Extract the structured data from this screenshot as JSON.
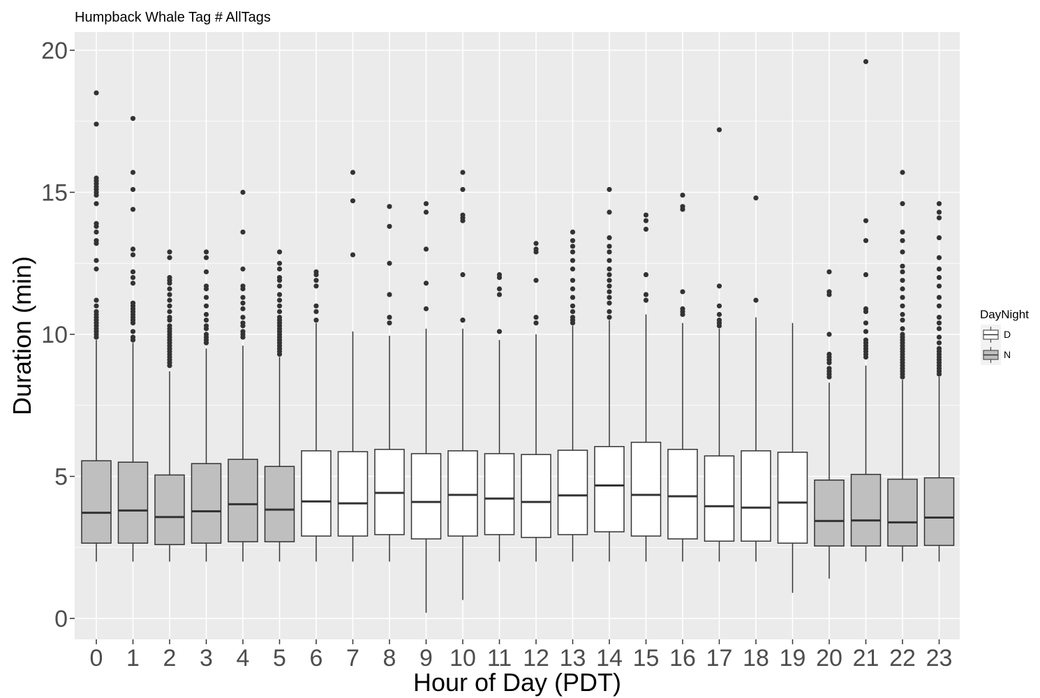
{
  "chart_data": {
    "type": "boxplot",
    "title": "Humpback Whale Tag # AllTags",
    "xlabel": "Hour of Day (PDT)",
    "ylabel": "Duration (min)",
    "ylim": [
      -0.7,
      20.7
    ],
    "yticks": [
      0,
      5,
      10,
      15,
      20
    ],
    "grid": true,
    "legend": {
      "title": "DayNight",
      "position": "right",
      "entries": [
        {
          "label": "D",
          "fill": "#ffffff"
        },
        {
          "label": "N",
          "fill": "#bfbfbf"
        }
      ]
    },
    "colors": {
      "panel": "#ebebeb",
      "grid": "#ffffff",
      "box_line": "#333333",
      "outlier": "#333333",
      "D": "#ffffff",
      "N": "#bfbfbf"
    },
    "categories": [
      "0",
      "1",
      "2",
      "3",
      "4",
      "5",
      "6",
      "7",
      "8",
      "9",
      "10",
      "11",
      "12",
      "13",
      "14",
      "15",
      "16",
      "17",
      "18",
      "19",
      "20",
      "21",
      "22",
      "23"
    ],
    "boxes": [
      {
        "x": "0",
        "group": "N",
        "whisker_low": 2.0,
        "q1": 2.65,
        "median": 3.72,
        "q3": 5.55,
        "whisker_high": 9.8,
        "outliers": [
          9.9,
          10.0,
          10.1,
          10.2,
          10.3,
          10.4,
          10.5,
          10.6,
          10.7,
          10.8,
          11.0,
          11.2,
          12.3,
          12.6,
          13.2,
          13.3,
          13.6,
          13.8,
          13.9,
          14.6,
          14.9,
          15.0,
          15.1,
          15.2,
          15.3,
          15.4,
          15.5,
          17.4,
          18.5
        ]
      },
      {
        "x": "1",
        "group": "N",
        "whisker_low": 2.0,
        "q1": 2.65,
        "median": 3.8,
        "q3": 5.5,
        "whisker_high": 9.7,
        "outliers": [
          9.8,
          9.9,
          10.1,
          10.4,
          10.5,
          10.6,
          10.7,
          10.8,
          10.9,
          11.0,
          11.1,
          11.8,
          12.0,
          12.2,
          12.8,
          13.0,
          14.4,
          15.1,
          15.7,
          17.6
        ]
      },
      {
        "x": "2",
        "group": "N",
        "whisker_low": 2.0,
        "q1": 2.6,
        "median": 3.57,
        "q3": 5.05,
        "whisker_high": 8.7,
        "outliers": [
          8.9,
          9.0,
          9.1,
          9.2,
          9.3,
          9.4,
          9.5,
          9.6,
          9.7,
          9.8,
          9.9,
          10.0,
          10.1,
          10.2,
          10.3,
          10.5,
          10.6,
          10.8,
          11.0,
          11.2,
          11.4,
          11.6,
          11.8,
          11.9,
          12.0,
          12.7,
          12.9
        ]
      },
      {
        "x": "3",
        "group": "N",
        "whisker_low": 2.0,
        "q1": 2.65,
        "median": 3.77,
        "q3": 5.45,
        "whisker_high": 9.5,
        "outliers": [
          9.7,
          9.8,
          9.9,
          10.0,
          10.2,
          10.3,
          10.5,
          10.7,
          11.0,
          11.3,
          11.6,
          11.7,
          12.2,
          12.7,
          12.9
        ]
      },
      {
        "x": "4",
        "group": "N",
        "whisker_low": 2.0,
        "q1": 2.7,
        "median": 4.02,
        "q3": 5.6,
        "whisker_high": 9.6,
        "outliers": [
          9.9,
          10.0,
          10.1,
          10.3,
          10.4,
          10.6,
          10.9,
          11.1,
          11.3,
          11.6,
          11.7,
          12.3,
          13.6,
          15.0
        ]
      },
      {
        "x": "5",
        "group": "N",
        "whisker_low": 2.0,
        "q1": 2.7,
        "median": 3.83,
        "q3": 5.35,
        "whisker_high": 9.2,
        "outliers": [
          9.3,
          9.4,
          9.5,
          9.6,
          9.7,
          9.8,
          9.9,
          10.0,
          10.1,
          10.2,
          10.3,
          10.4,
          10.5,
          10.6,
          10.8,
          11.0,
          11.2,
          11.4,
          11.7,
          11.9,
          12.0,
          12.3,
          12.5,
          12.9
        ]
      },
      {
        "x": "6",
        "group": "D",
        "whisker_low": 2.0,
        "q1": 2.9,
        "median": 4.12,
        "q3": 5.9,
        "whisker_high": 10.4,
        "outliers": [
          10.5,
          10.8,
          11.0,
          11.7,
          11.9,
          12.1,
          12.2
        ]
      },
      {
        "x": "7",
        "group": "D",
        "whisker_low": 2.0,
        "q1": 2.9,
        "median": 4.05,
        "q3": 5.87,
        "whisker_high": 10.1,
        "outliers": [
          12.8,
          14.7,
          15.7
        ]
      },
      {
        "x": "8",
        "group": "D",
        "whisker_low": 2.0,
        "q1": 2.95,
        "median": 4.42,
        "q3": 5.95,
        "whisker_high": 9.95,
        "outliers": [
          10.4,
          10.6,
          11.4,
          12.5,
          13.8,
          14.5
        ]
      },
      {
        "x": "9",
        "group": "D",
        "whisker_low": 0.2,
        "q1": 2.8,
        "median": 4.1,
        "q3": 5.8,
        "whisker_high": 10.2,
        "outliers": [
          10.9,
          11.8,
          13.0,
          14.3,
          14.6
        ]
      },
      {
        "x": "10",
        "group": "D",
        "whisker_low": 0.65,
        "q1": 2.9,
        "median": 4.35,
        "q3": 5.9,
        "whisker_high": 10.2,
        "outliers": [
          10.5,
          10.5,
          12.1,
          14.0,
          14.1,
          14.2,
          15.1,
          15.7
        ]
      },
      {
        "x": "11",
        "group": "D",
        "whisker_low": 2.0,
        "q1": 2.95,
        "median": 4.22,
        "q3": 5.8,
        "whisker_high": 9.8,
        "outliers": [
          10.1,
          11.4,
          11.6,
          12.0,
          12.1
        ]
      },
      {
        "x": "12",
        "group": "D",
        "whisker_low": 2.0,
        "q1": 2.85,
        "median": 4.1,
        "q3": 5.77,
        "whisker_high": 10.0,
        "outliers": [
          10.4,
          10.6,
          11.9,
          12.9,
          13.0,
          13.2
        ]
      },
      {
        "x": "13",
        "group": "D",
        "whisker_low": 2.0,
        "q1": 2.95,
        "median": 4.33,
        "q3": 5.92,
        "whisker_high": 10.3,
        "outliers": [
          10.4,
          10.5,
          10.6,
          10.8,
          11.0,
          11.3,
          11.6,
          11.9,
          12.3,
          12.6,
          12.9,
          13.1,
          13.3,
          13.6
        ]
      },
      {
        "x": "14",
        "group": "D",
        "whisker_low": 2.0,
        "q1": 3.05,
        "median": 4.68,
        "q3": 6.05,
        "whisker_high": 10.5,
        "outliers": [
          10.6,
          10.8,
          11.1,
          11.3,
          11.5,
          11.7,
          11.9,
          12.1,
          12.3,
          12.6,
          12.9,
          13.1,
          13.4,
          14.3,
          15.1
        ]
      },
      {
        "x": "15",
        "group": "D",
        "whisker_low": 2.0,
        "q1": 2.9,
        "median": 4.35,
        "q3": 6.2,
        "whisker_high": 10.7,
        "outliers": [
          11.2,
          11.4,
          12.1,
          13.7,
          14.0,
          14.2
        ]
      },
      {
        "x": "16",
        "group": "D",
        "whisker_low": 2.0,
        "q1": 2.8,
        "median": 4.3,
        "q3": 5.95,
        "whisker_high": 10.4,
        "outliers": [
          10.7,
          10.8,
          10.9,
          11.5,
          14.4,
          14.5,
          14.9
        ]
      },
      {
        "x": "17",
        "group": "D",
        "whisker_low": 2.0,
        "q1": 2.72,
        "median": 3.95,
        "q3": 5.72,
        "whisker_high": 10.2,
        "outliers": [
          10.3,
          10.4,
          10.5,
          10.7,
          11.0,
          11.7,
          17.2
        ]
      },
      {
        "x": "18",
        "group": "D",
        "whisker_low": 2.0,
        "q1": 2.72,
        "median": 3.9,
        "q3": 5.9,
        "whisker_high": 10.6,
        "outliers": [
          11.2,
          14.8
        ]
      },
      {
        "x": "19",
        "group": "D",
        "whisker_low": 0.9,
        "q1": 2.65,
        "median": 4.08,
        "q3": 5.85,
        "whisker_high": 10.4,
        "outliers": []
      },
      {
        "x": "20",
        "group": "N",
        "whisker_low": 1.4,
        "q1": 2.55,
        "median": 3.43,
        "q3": 4.87,
        "whisker_high": 8.3,
        "outliers": [
          8.5,
          8.6,
          8.7,
          8.8,
          9.0,
          9.1,
          9.2,
          9.3,
          10.0,
          11.4,
          11.5,
          12.2
        ]
      },
      {
        "x": "21",
        "group": "N",
        "whisker_low": 2.0,
        "q1": 2.55,
        "median": 3.45,
        "q3": 5.07,
        "whisker_high": 8.9,
        "outliers": [
          9.2,
          9.3,
          9.4,
          9.5,
          9.6,
          9.7,
          9.8,
          10.1,
          10.4,
          10.8,
          10.9,
          12.1,
          13.3,
          14.0,
          19.6
        ]
      },
      {
        "x": "22",
        "group": "N",
        "whisker_low": 2.0,
        "q1": 2.55,
        "median": 3.38,
        "q3": 4.9,
        "whisker_high": 8.4,
        "outliers": [
          8.5,
          8.6,
          8.7,
          8.8,
          8.9,
          9.0,
          9.1,
          9.2,
          9.3,
          9.4,
          9.5,
          9.6,
          9.7,
          9.8,
          9.9,
          10.0,
          10.2,
          10.5,
          10.7,
          11.0,
          11.3,
          11.6,
          11.9,
          12.2,
          12.4,
          12.9,
          13.3,
          13.6,
          14.6,
          15.7
        ]
      },
      {
        "x": "23",
        "group": "N",
        "whisker_low": 2.0,
        "q1": 2.57,
        "median": 3.55,
        "q3": 4.95,
        "whisker_high": 8.5,
        "outliers": [
          8.6,
          8.7,
          8.8,
          8.9,
          9.0,
          9.1,
          9.2,
          9.3,
          9.4,
          9.5,
          9.7,
          9.9,
          10.2,
          10.4,
          10.6,
          11.0,
          11.3,
          11.7,
          12.0,
          12.3,
          12.7,
          13.4,
          14.1,
          14.3,
          14.6
        ]
      }
    ]
  }
}
